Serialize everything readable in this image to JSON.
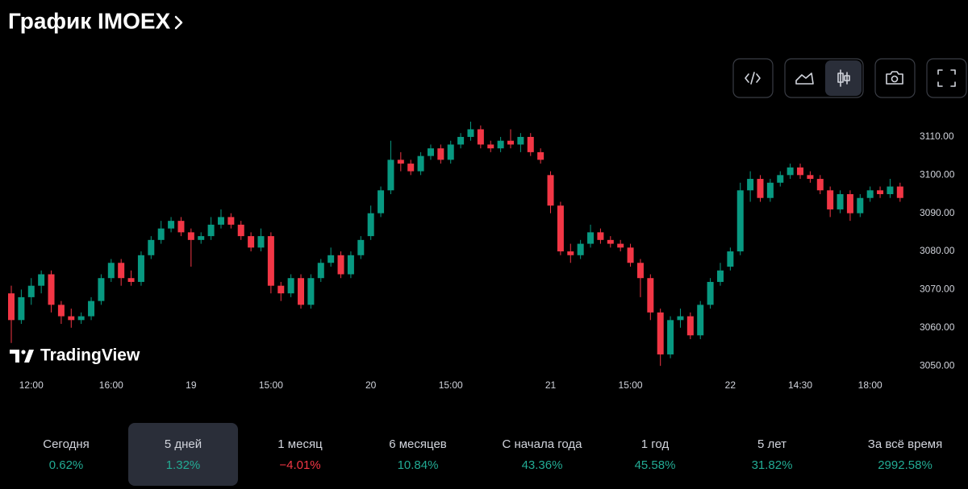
{
  "header": {
    "title": "График IMOEX"
  },
  "chart_data": {
    "type": "candlestick",
    "categories": [
      null,
      null,
      "12:00",
      null,
      null,
      null,
      null,
      null,
      null,
      null,
      "16:00",
      null,
      null,
      null,
      null,
      null,
      null,
      null,
      "19",
      null,
      null,
      null,
      null,
      null,
      null,
      null,
      "15:00",
      null,
      null,
      null,
      null,
      null,
      null,
      null,
      null,
      null,
      "20",
      null,
      null,
      null,
      null,
      null,
      null,
      null,
      "15:00",
      null,
      null,
      null,
      null,
      null,
      null,
      null,
      null,
      null,
      "21",
      null,
      null,
      null,
      null,
      null,
      null,
      null,
      "15:00",
      null,
      null,
      null,
      null,
      null,
      null,
      null,
      null,
      null,
      "22",
      null,
      null,
      null,
      null,
      null,
      null,
      "14:30",
      null,
      null,
      null,
      null,
      null,
      null,
      "18:00",
      null,
      null,
      null
    ],
    "open": [
      3069,
      3062,
      3068,
      3071,
      3074,
      3066,
      3063,
      3062,
      3063,
      3067,
      3073,
      3077,
      3073,
      3072,
      3079,
      3083,
      3086,
      3088,
      3085,
      3083,
      3084,
      3087,
      3089,
      3087,
      3084,
      3081,
      3084,
      3071,
      3069,
      3073,
      3066,
      3073,
      3077,
      3079,
      3074,
      3079,
      3084,
      3090,
      3096,
      3104,
      3103,
      3101,
      3105,
      3107,
      3104,
      3108,
      3110,
      3112,
      3108,
      3107,
      3109,
      3108,
      3110,
      3106,
      3100,
      3092,
      3080,
      3079,
      3082,
      3085,
      3083,
      3082,
      3081,
      3077,
      3073,
      3064,
      3053,
      3062,
      3063,
      3058,
      3066,
      3072,
      3076,
      3080,
      3096,
      3099,
      3094,
      3098,
      3100,
      3102,
      3100,
      3099,
      3096,
      3091,
      3095,
      3090,
      3094,
      3096,
      3095,
      3097
    ],
    "high": [
      3071,
      3070,
      3073,
      3075,
      3075,
      3067,
      3065,
      3064,
      3068,
      3074,
      3078,
      3078,
      3075,
      3080,
      3084,
      3088,
      3089,
      3089,
      3086,
      3085,
      3089,
      3091,
      3090,
      3088,
      3085,
      3086,
      3085,
      3072,
      3074,
      3074,
      3074,
      3078,
      3081,
      3080,
      3080,
      3084,
      3092,
      3097,
      3109,
      3106,
      3104,
      3106,
      3108,
      3108,
      3109,
      3111,
      3114,
      3113,
      3109,
      3110,
      3112,
      3111,
      3111,
      3107,
      3101,
      3093,
      3082,
      3083,
      3087,
      3086,
      3084,
      3083,
      3082,
      3078,
      3074,
      3065,
      3063,
      3065,
      3064,
      3067,
      3073,
      3077,
      3081,
      3098,
      3101,
      3100,
      3099,
      3101,
      3103,
      3103,
      3101,
      3100,
      3097,
      3096,
      3096,
      3095,
      3097,
      3097,
      3099,
      3098
    ],
    "low": [
      3056,
      3061,
      3066,
      3069,
      3064,
      3061,
      3060,
      3061,
      3062,
      3066,
      3072,
      3071,
      3071,
      3071,
      3078,
      3082,
      3085,
      3084,
      3076,
      3082,
      3083,
      3086,
      3086,
      3083,
      3080,
      3080,
      3069,
      3067,
      3068,
      3065,
      3065,
      3072,
      3076,
      3073,
      3073,
      3078,
      3083,
      3089,
      3095,
      3101,
      3100,
      3100,
      3104,
      3103,
      3103,
      3107,
      3109,
      3107,
      3106,
      3106,
      3107,
      3106,
      3105,
      3103,
      3090,
      3079,
      3077,
      3078,
      3081,
      3082,
      3081,
      3080,
      3076,
      3068,
      3062,
      3050,
      3052,
      3060,
      3057,
      3057,
      3065,
      3071,
      3075,
      3079,
      3093,
      3093,
      3093,
      3097,
      3099,
      3099,
      3098,
      3095,
      3089,
      3090,
      3088,
      3089,
      3093,
      3094,
      3094,
      3093
    ],
    "close": [
      3062,
      3068,
      3071,
      3074,
      3066,
      3063,
      3062,
      3063,
      3067,
      3073,
      3077,
      3073,
      3072,
      3079,
      3083,
      3086,
      3088,
      3085,
      3083,
      3084,
      3087,
      3089,
      3087,
      3084,
      3081,
      3084,
      3071,
      3069,
      3073,
      3066,
      3073,
      3077,
      3079,
      3074,
      3079,
      3083,
      3090,
      3096,
      3104,
      3103,
      3101,
      3105,
      3107,
      3104,
      3108,
      3110,
      3112,
      3108,
      3107,
      3109,
      3108,
      3110,
      3106,
      3104,
      3092,
      3080,
      3079,
      3082,
      3085,
      3083,
      3082,
      3081,
      3077,
      3073,
      3064,
      3053,
      3062,
      3063,
      3058,
      3066,
      3072,
      3075,
      3080,
      3096,
      3099,
      3094,
      3098,
      3100,
      3102,
      3100,
      3099,
      3096,
      3091,
      3095,
      3090,
      3094,
      3096,
      3095,
      3097,
      3094
    ],
    "up_color": "#089981",
    "down_color": "#f23645",
    "ylim": [
      3047.5,
      3114
    ],
    "yticks": [
      {
        "value": 3050,
        "label": "3050.00"
      },
      {
        "value": 3060,
        "label": "3060.00"
      },
      {
        "value": 3070,
        "label": "3070.00"
      },
      {
        "value": 3080,
        "label": "3080.00"
      },
      {
        "value": 3090,
        "label": "3090.00"
      },
      {
        "value": 3100,
        "label": "3100.00"
      },
      {
        "value": 3110,
        "label": "3110.00"
      }
    ],
    "watermark": "TradingView"
  },
  "periods": [
    {
      "label": "Сегодня",
      "change": "0.62%"
    },
    {
      "label": "5 дней",
      "change": "1.32%",
      "selected": true
    },
    {
      "label": "1 месяц",
      "change": "−4.01%"
    },
    {
      "label": "6 месяцев",
      "change": "10.84%"
    },
    {
      "label": "С начала года",
      "change": "43.36%"
    },
    {
      "label": "1 год",
      "change": "45.58%"
    },
    {
      "label": "5 лет",
      "change": "31.82%"
    },
    {
      "label": "За всё время",
      "change": "2992.58%"
    }
  ]
}
